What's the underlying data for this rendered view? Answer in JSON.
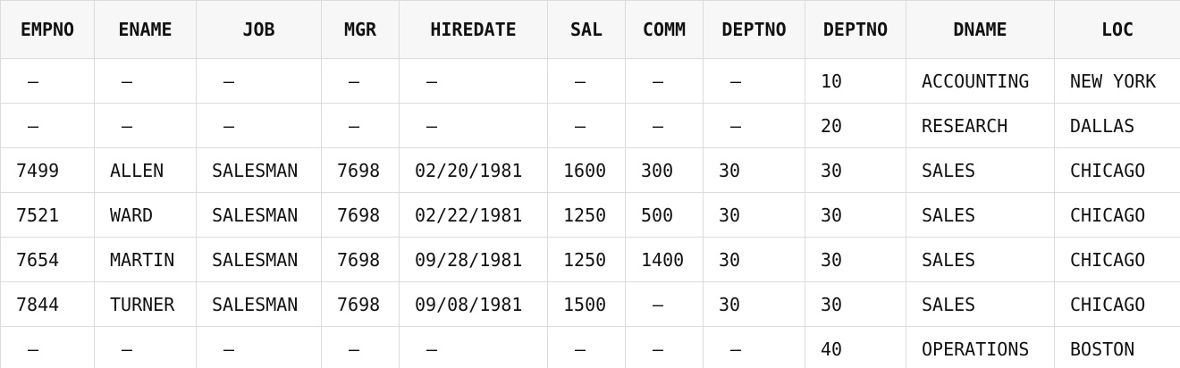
{
  "columns": [
    "EMPNO",
    "ENAME",
    "JOB",
    "MGR",
    "HIREDATE",
    "SAL",
    "COMM",
    "DEPTNO",
    "DEPTNO",
    "DNAME",
    "LOC"
  ],
  "rows": [
    [
      "–",
      "–",
      "–",
      "–",
      "–",
      "–",
      "–",
      "–",
      "10",
      "ACCOUNTING",
      "NEW YORK"
    ],
    [
      "–",
      "–",
      "–",
      "–",
      "–",
      "–",
      "–",
      "–",
      "20",
      "RESEARCH",
      "DALLAS"
    ],
    [
      "7499",
      "ALLEN",
      "SALESMAN",
      "7698",
      "02/20/1981",
      "1600",
      "300",
      "30",
      "30",
      "SALES",
      "CHICAGO"
    ],
    [
      "7521",
      "WARD",
      "SALESMAN",
      "7698",
      "02/22/1981",
      "1250",
      "500",
      "30",
      "30",
      "SALES",
      "CHICAGO"
    ],
    [
      "7654",
      "MARTIN",
      "SALESMAN",
      "7698",
      "09/28/1981",
      "1250",
      "1400",
      "30",
      "30",
      "SALES",
      "CHICAGO"
    ],
    [
      "7844",
      "TURNER",
      "SALESMAN",
      "7698",
      "09/08/1981",
      "1500",
      "–",
      "30",
      "30",
      "SALES",
      "CHICAGO"
    ],
    [
      "–",
      "–",
      "–",
      "–",
      "–",
      "–",
      "–",
      "–",
      "40",
      "OPERATIONS",
      "BOSTON"
    ]
  ]
}
